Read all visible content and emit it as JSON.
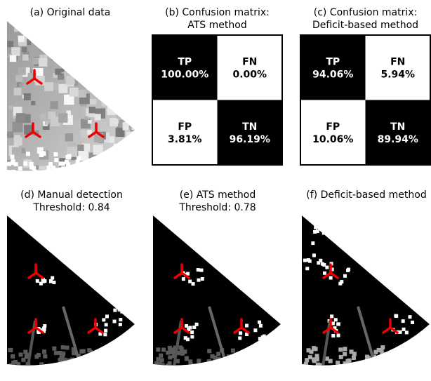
{
  "original": {
    "title": "(a) Original data"
  },
  "matrices": [
    {
      "title_lines": [
        "(b) Confusion matrix:",
        "ATS method"
      ],
      "cells": [
        {
          "label": "TP",
          "value": "100.00%"
        },
        {
          "label": "FN",
          "value": "0.00%"
        },
        {
          "label": "FP",
          "value": "3.81%"
        },
        {
          "label": "TN",
          "value": "96.19%"
        }
      ]
    },
    {
      "title_lines": [
        "(c) Confusion matrix:",
        "Deficit-based method"
      ],
      "cells": [
        {
          "label": "TP",
          "value": "94.06%"
        },
        {
          "label": "FN",
          "value": "5.94%"
        },
        {
          "label": "FP",
          "value": "10.06%"
        },
        {
          "label": "TN",
          "value": "89.94%"
        }
      ]
    }
  ],
  "detections": [
    {
      "title_lines": [
        "(d) Manual detection",
        "Threshold: 0.84"
      ]
    },
    {
      "title_lines": [
        "(e) ATS method",
        "Threshold: 0.78"
      ]
    },
    {
      "title_lines": [
        "(f) Deficit-based method"
      ]
    }
  ]
}
